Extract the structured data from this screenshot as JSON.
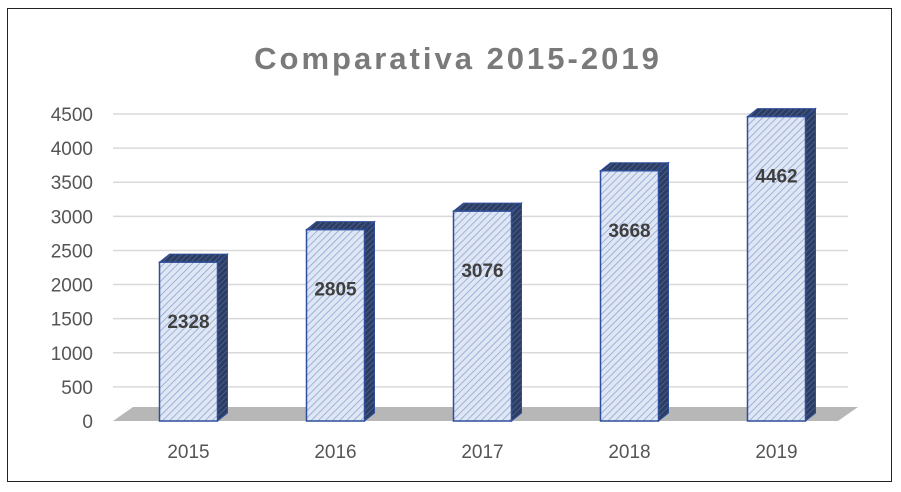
{
  "chart_data": {
    "type": "bar",
    "title": "Comparativa 2015-2019",
    "categories": [
      "2015",
      "2016",
      "2017",
      "2018",
      "2019"
    ],
    "values": [
      2328,
      2805,
      3076,
      3668,
      4462
    ],
    "data_labels": [
      "2328",
      "2805",
      "3076",
      "3668",
      "4462"
    ],
    "yticks": [
      "0",
      "500",
      "1000",
      "1500",
      "2000",
      "2500",
      "3000",
      "3500",
      "4000",
      "4500"
    ],
    "ylim": [
      0,
      4500
    ],
    "xlabel": "",
    "ylabel": "",
    "grid": true,
    "legend": "none",
    "style": "3d-column",
    "colors": {
      "bar_fill": "#dfe6f4",
      "bar_hatch": "#8fa6d4",
      "bar_outline": "#2f4f9c",
      "bar_side": "#2b3d63",
      "floor": "#b7b7b7",
      "grid": "#d9d9d9",
      "title": "#7a7a7a",
      "tick_text": "#555555"
    }
  }
}
